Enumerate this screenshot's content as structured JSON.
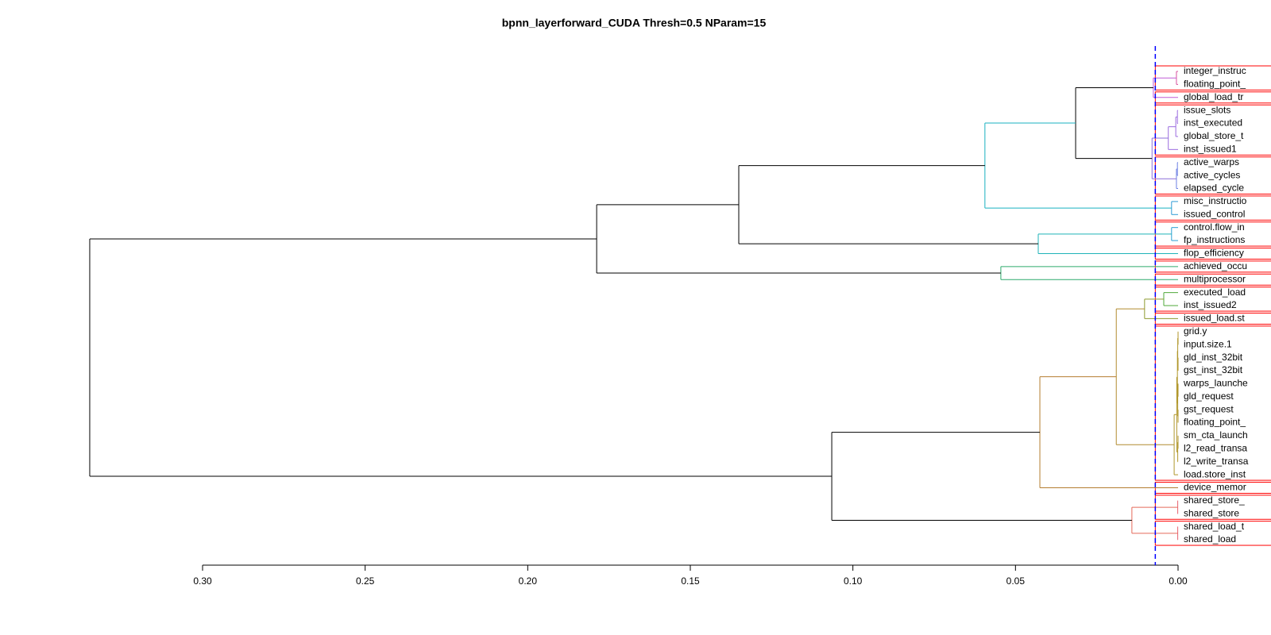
{
  "chart_data": {
    "type": "dendrogram",
    "title": "bpnn_layerforward_CUDA Thresh=0.5 NParam=15",
    "leaves": [
      "integer_instruc",
      "floating_point_",
      "global_load_tr",
      "issue_slots",
      "inst_executed",
      "global_store_t",
      "inst_issued1",
      "active_warps",
      "active_cycles",
      "elapsed_cycle",
      "misc_instructio",
      "issued_control",
      "control.flow_in",
      "fp_instructions",
      "flop_efficiency",
      "achieved_occu",
      "multiprocessor",
      "executed_load",
      "inst_issued2",
      "issued_load.st",
      "grid.y",
      "input.size.1",
      "gld_inst_32bit",
      "gst_inst_32bit",
      "warps_launche",
      "gld_request",
      "gst_request",
      "floating_point_",
      "sm_cta_launch",
      "l2_read_transa",
      "l2_write_transa",
      "load.store_inst",
      "device_memor",
      "shared_store_",
      "shared_store",
      "shared_load_t",
      "shared_load"
    ],
    "merges": [
      {
        "left": -1,
        "right": -2,
        "height": 0.0005,
        "color": "#d9529e"
      },
      {
        "left": 1,
        "right": -3,
        "height": 0.0076,
        "color": "#c05bd6"
      },
      {
        "left": -4,
        "right": -5,
        "height": 0.0002,
        "color": "#9b6bdf"
      },
      {
        "left": 3,
        "right": -6,
        "height": 0.0007,
        "color": "#9b6bdf"
      },
      {
        "left": 4,
        "right": -7,
        "height": 0.003,
        "color": "#9b6bdf"
      },
      {
        "left": -8,
        "right": -9,
        "height": 0.0002,
        "color": "#6c7fe3"
      },
      {
        "left": 6,
        "right": -10,
        "height": 0.0005,
        "color": "#6c7fe3"
      },
      {
        "left": 5,
        "right": 7,
        "height": 0.008,
        "color": "#8c6fd9"
      },
      {
        "left": 2,
        "right": 8,
        "height": 0.0315,
        "color": "#000000"
      },
      {
        "left": -11,
        "right": -12,
        "height": 0.002,
        "color": "#2e9bd6"
      },
      {
        "left": 9,
        "right": 10,
        "height": 0.0594,
        "color": "#19b0c0"
      },
      {
        "left": -13,
        "right": -14,
        "height": 0.002,
        "color": "#2a9fd4"
      },
      {
        "left": 12,
        "right": -15,
        "height": 0.043,
        "color": "#1fb3b8"
      },
      {
        "left": 11,
        "right": 13,
        "height": 0.1351,
        "color": "#000000"
      },
      {
        "left": -16,
        "right": -17,
        "height": 0.0545,
        "color": "#2daa6b"
      },
      {
        "left": 14,
        "right": 15,
        "height": 0.1788,
        "color": "#000000"
      },
      {
        "left": -18,
        "right": -19,
        "height": 0.0044,
        "color": "#4fa83a"
      },
      {
        "left": 17,
        "right": -20,
        "height": 0.0103,
        "color": "#8e9a2f"
      },
      {
        "left": -21,
        "right": -22,
        "height": 0,
        "color": "#b0962a"
      },
      {
        "left": -23,
        "right": -24,
        "height": 0,
        "color": "#b0962a"
      },
      {
        "left": 19,
        "right": 20,
        "height": 0.0001,
        "color": "#b0962a"
      },
      {
        "left": -25,
        "right": -26,
        "height": 0,
        "color": "#b0962a"
      },
      {
        "left": -27,
        "right": -28,
        "height": 0,
        "color": "#b0962a"
      },
      {
        "left": 22,
        "right": 23,
        "height": 0.0001,
        "color": "#b0962a"
      },
      {
        "left": 21,
        "right": 24,
        "height": 0.0002,
        "color": "#b0962a"
      },
      {
        "left": -29,
        "right": -30,
        "height": 0,
        "color": "#b0962a"
      },
      {
        "left": 26,
        "right": -31,
        "height": 0.0001,
        "color": "#b0962a"
      },
      {
        "left": 25,
        "right": 27,
        "height": 0.0004,
        "color": "#b0962a"
      },
      {
        "left": 28,
        "right": -32,
        "height": 0.0012,
        "color": "#b0962a"
      },
      {
        "left": 18,
        "right": 29,
        "height": 0.019,
        "color": "#b08a2e"
      },
      {
        "left": 30,
        "right": -33,
        "height": 0.0425,
        "color": "#b47d30"
      },
      {
        "left": -34,
        "right": -35,
        "height": 0.0001,
        "color": "#e8616f"
      },
      {
        "left": -36,
        "right": -37,
        "height": 0.0001,
        "color": "#e8616f"
      },
      {
        "left": 32,
        "right": 33,
        "height": 0.0142,
        "color": "#e56a5a"
      },
      {
        "left": 31,
        "right": 34,
        "height": 0.1065,
        "color": "#000000"
      },
      {
        "left": 16,
        "right": 35,
        "height": 0.3347,
        "color": "#000000"
      }
    ],
    "threshold": 0.007,
    "threshold_color": "#0000ff",
    "cluster_box_color": "#ff0000",
    "xlim": [
      0.3,
      0
    ],
    "xticks": [
      {
        "value": 0.3,
        "label": "0.30"
      },
      0.25,
      {
        "value": 0.2,
        "label": "0.20"
      },
      0.15,
      {
        "value": 0.1,
        "label": "0.10"
      },
      0.05,
      {
        "value": 0,
        "label": "0.00"
      }
    ]
  }
}
